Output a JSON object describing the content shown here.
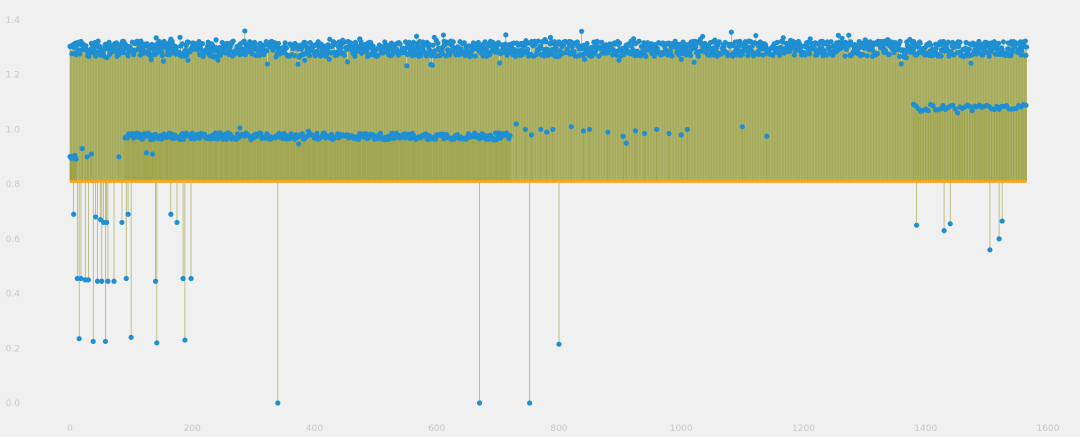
{
  "chart_data": {
    "type": "stem",
    "xlim": [
      0,
      1600
    ],
    "ylim": [
      0,
      1.4
    ],
    "baseline": 0.81,
    "grid": false,
    "x_ticks": [
      0,
      200,
      400,
      600,
      800,
      1000,
      1200,
      1400,
      1600
    ],
    "y_ticks": [
      0.0,
      0.2,
      0.4,
      0.6,
      0.8,
      1.0,
      1.2,
      1.4
    ],
    "x_tick_labels": [
      "0",
      "200",
      "400",
      "600",
      "800",
      "1000",
      "1200",
      "1400",
      "1600"
    ],
    "y_tick_labels": [
      "0.0",
      "0.2",
      "0.4",
      "0.6",
      "0.8",
      "1.0",
      "1.2",
      "1.4"
    ],
    "x_range": [
      0,
      1565
    ],
    "colors": {
      "marker": "#1f8fd2",
      "stem": "#9aa043",
      "baseline": "#f5a623",
      "background": "#f0f0f0",
      "tick": "#c8c8c8"
    },
    "clusters": [
      {
        "x_start": 0,
        "x_end": 1565,
        "y_center": 1.295,
        "y_spread": 0.028,
        "step": 1
      },
      {
        "x_start": 90,
        "x_end": 720,
        "y_center": 0.975,
        "y_spread": 0.012,
        "step": 2
      },
      {
        "x_start": 1380,
        "x_end": 1565,
        "y_center": 1.08,
        "y_spread": 0.012,
        "step": 4
      },
      {
        "x_start": 0,
        "x_end": 10,
        "y_center": 0.9,
        "y_spread": 0.005,
        "step": 1
      }
    ],
    "low_points": [
      [
        6,
        0.69
      ],
      [
        12,
        0.455
      ],
      [
        15,
        0.235
      ],
      [
        18,
        0.455
      ],
      [
        25,
        0.45
      ],
      [
        30,
        0.45
      ],
      [
        38,
        0.225
      ],
      [
        42,
        0.68
      ],
      [
        45,
        0.445
      ],
      [
        50,
        0.67
      ],
      [
        52,
        0.445
      ],
      [
        55,
        0.66
      ],
      [
        58,
        0.225
      ],
      [
        60,
        0.66
      ],
      [
        62,
        0.445
      ],
      [
        72,
        0.445
      ],
      [
        85,
        0.66
      ],
      [
        92,
        0.455
      ],
      [
        95,
        0.69
      ],
      [
        100,
        0.24
      ],
      [
        140,
        0.445
      ],
      [
        142,
        0.22
      ],
      [
        165,
        0.69
      ],
      [
        175,
        0.66
      ],
      [
        185,
        0.455
      ],
      [
        188,
        0.23
      ],
      [
        198,
        0.455
      ],
      [
        340,
        0.0
      ],
      [
        670,
        0.0
      ],
      [
        752,
        0.0
      ],
      [
        800,
        0.215
      ],
      [
        1385,
        0.65
      ],
      [
        1430,
        0.63
      ],
      [
        1440,
        0.655
      ],
      [
        1505,
        0.56
      ],
      [
        1520,
        0.6
      ],
      [
        1525,
        0.665
      ]
    ],
    "mid_points": [
      [
        8,
        0.905
      ],
      [
        20,
        0.93
      ],
      [
        28,
        0.9
      ],
      [
        35,
        0.91
      ],
      [
        80,
        0.9
      ],
      [
        125,
        0.915
      ],
      [
        135,
        0.91
      ],
      [
        730,
        1.02
      ],
      [
        745,
        1.0
      ],
      [
        755,
        0.98
      ],
      [
        770,
        1.0
      ],
      [
        780,
        0.99
      ],
      [
        790,
        1.0
      ],
      [
        820,
        1.01
      ],
      [
        840,
        0.995
      ],
      [
        850,
        1.0
      ],
      [
        880,
        0.99
      ],
      [
        905,
        0.975
      ],
      [
        910,
        0.95
      ],
      [
        925,
        0.995
      ],
      [
        940,
        0.985
      ],
      [
        960,
        1.0
      ],
      [
        980,
        0.985
      ],
      [
        1000,
        0.98
      ],
      [
        1010,
        1.0
      ],
      [
        1100,
        1.01
      ],
      [
        1140,
        0.975
      ]
    ]
  }
}
